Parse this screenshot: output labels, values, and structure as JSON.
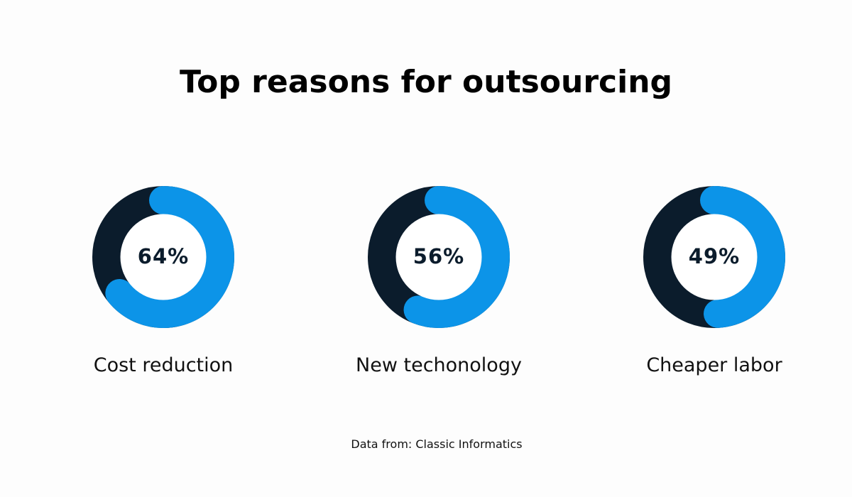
{
  "chart_data": {
    "type": "pie",
    "title": "Top reasons for outsourcing",
    "categories": [
      "Cost reduction",
      "New techonology",
      "Cheaper labor"
    ],
    "values": [
      64,
      56,
      49
    ],
    "value_labels": [
      "64%",
      "56%",
      "49%"
    ],
    "unit": "%",
    "source": "Data from: Classic Informatics"
  },
  "colors": {
    "track": "#0b1c2c",
    "fill": "#0c94e8",
    "inner": "#ffffff",
    "text": "#0b1c2c"
  }
}
